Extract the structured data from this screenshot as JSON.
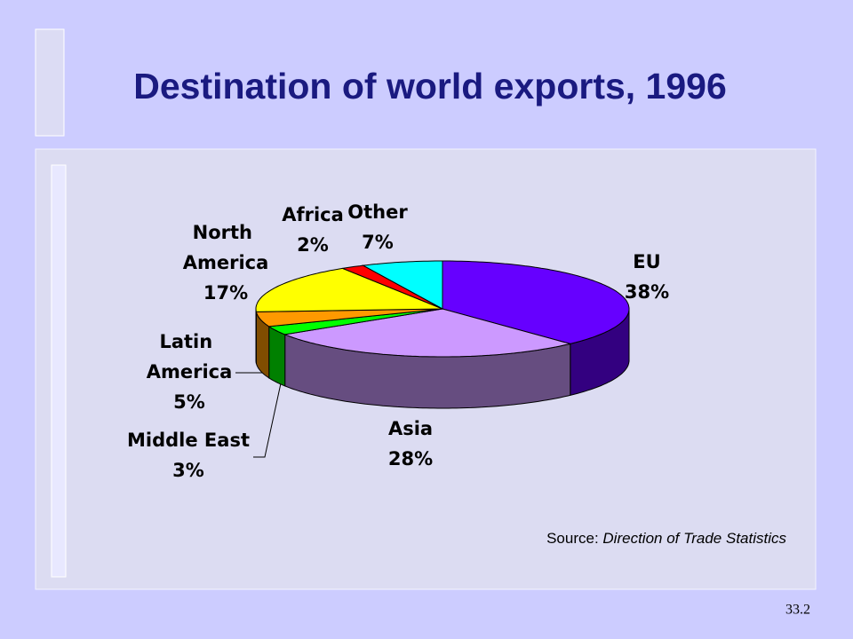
{
  "slide": {
    "title": "Destination of world exports, 1996",
    "page_number": "33.2",
    "source": {
      "prefix": "Source:",
      "title": "Direction of Trade Statistics"
    }
  },
  "chart_data": {
    "type": "pie",
    "categories": [
      "EU",
      "Asia",
      "Middle East",
      "Latin America",
      "North America",
      "Africa",
      "Other"
    ],
    "values": [
      38,
      28,
      3,
      5,
      17,
      2,
      7
    ],
    "value_labels": [
      "38%",
      "28%",
      "3%",
      "5%",
      "17%",
      "2%",
      "7%"
    ],
    "colors": [
      "#6600ff",
      "#cc99ff",
      "#00ff00",
      "#ff9900",
      "#ffff00",
      "#ff0000",
      "#00ffff"
    ]
  }
}
